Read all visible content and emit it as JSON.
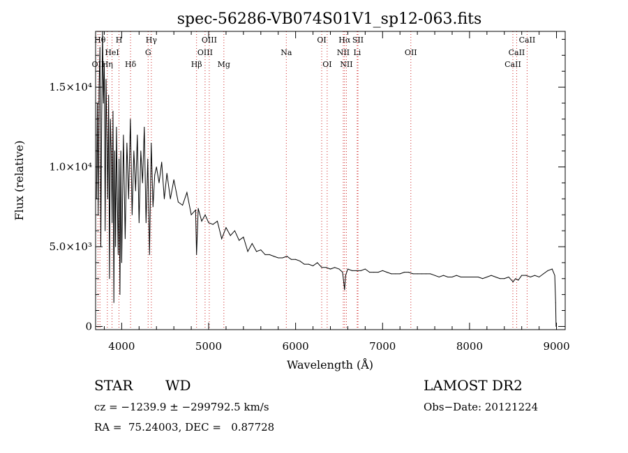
{
  "chart_data": {
    "type": "line",
    "title": "spec-56286-VB074S01V1_sp12-063.fits",
    "xlabel": "Wavelength (Å)",
    "ylabel": "Flux (relative)",
    "xlim": [
      3700,
      9100
    ],
    "ylim": [
      -200,
      18500
    ],
    "x_ticks": [
      {
        "value": 4000,
        "label": "4000"
      },
      {
        "value": 5000,
        "label": "5000"
      },
      {
        "value": 6000,
        "label": "6000"
      },
      {
        "value": 7000,
        "label": "7000"
      },
      {
        "value": 8000,
        "label": "8000"
      },
      {
        "value": 9000,
        "label": "9000"
      }
    ],
    "y_ticks": [
      {
        "value": 0,
        "label": "0"
      },
      {
        "value": 5000,
        "label": "5.0×10³"
      },
      {
        "value": 10000,
        "label": "1.0×10⁴"
      },
      {
        "value": 15000,
        "label": "1.5×10⁴"
      }
    ],
    "series": [
      {
        "color": "#000000",
        "x": [
          3710,
          3720,
          3730,
          3740,
          3750,
          3760,
          3770,
          3780,
          3790,
          3800,
          3810,
          3820,
          3830,
          3840,
          3850,
          3860,
          3870,
          3880,
          3890,
          3900,
          3910,
          3920,
          3930,
          3940,
          3950,
          3960,
          3970,
          3980,
          3990,
          4000,
          4020,
          4040,
          4060,
          4080,
          4100,
          4120,
          4140,
          4160,
          4180,
          4200,
          4220,
          4240,
          4260,
          4280,
          4300,
          4320,
          4340,
          4360,
          4380,
          4400,
          4430,
          4460,
          4490,
          4520,
          4560,
          4600,
          4650,
          4700,
          4750,
          4800,
          4850,
          4861,
          4880,
          4920,
          4960,
          5000,
          5050,
          5100,
          5150,
          5200,
          5250,
          5300,
          5350,
          5400,
          5450,
          5500,
          5550,
          5600,
          5650,
          5700,
          5750,
          5800,
          5850,
          5900,
          5950,
          6000,
          6050,
          6100,
          6150,
          6200,
          6250,
          6300,
          6350,
          6400,
          6450,
          6500,
          6540,
          6555,
          6563,
          6575,
          6600,
          6650,
          6700,
          6750,
          6800,
          6850,
          6900,
          6950,
          7000,
          7050,
          7100,
          7150,
          7200,
          7250,
          7300,
          7350,
          7400,
          7450,
          7500,
          7550,
          7600,
          7650,
          7700,
          7750,
          7800,
          7850,
          7900,
          7950,
          8000,
          8050,
          8100,
          8150,
          8200,
          8250,
          8300,
          8350,
          8400,
          8450,
          8500,
          8530,
          8560,
          8600,
          8650,
          8700,
          8750,
          8800,
          8850,
          8900,
          8950,
          8980,
          8990,
          8995
        ],
        "y": [
          8000,
          14000,
          7000,
          15000,
          17500,
          5000,
          13000,
          18500,
          14000,
          16500,
          6000,
          15500,
          12000,
          8000,
          14500,
          3000,
          13000,
          11000,
          6500,
          13500,
          1500,
          11000,
          5000,
          12500,
          8000,
          4500,
          10500,
          2000,
          11000,
          4000,
          12000,
          5500,
          11500,
          8000,
          13000,
          7000,
          11000,
          8500,
          12000,
          6500,
          11000,
          9000,
          12500,
          6500,
          10500,
          4500,
          11500,
          7500,
          9500,
          10000,
          9000,
          10300,
          8000,
          9600,
          8000,
          9200,
          7800,
          7600,
          8400,
          7000,
          7300,
          4500,
          7400,
          6600,
          7000,
          6500,
          6400,
          6600,
          5500,
          6200,
          5700,
          6000,
          5400,
          5600,
          4700,
          5200,
          4700,
          4800,
          4500,
          4500,
          4400,
          4300,
          4300,
          4400,
          4200,
          4200,
          4100,
          3900,
          3900,
          3800,
          4000,
          3700,
          3700,
          3600,
          3700,
          3600,
          3400,
          2700,
          2300,
          3200,
          3600,
          3500,
          3500,
          3500,
          3600,
          3400,
          3400,
          3400,
          3500,
          3400,
          3300,
          3300,
          3300,
          3400,
          3400,
          3300,
          3300,
          3300,
          3300,
          3300,
          3200,
          3100,
          3200,
          3100,
          3100,
          3200,
          3100,
          3100,
          3100,
          3100,
          3100,
          3000,
          3100,
          3200,
          3100,
          3000,
          3000,
          3100,
          2800,
          3000,
          2900,
          3200,
          3200,
          3100,
          3200,
          3100,
          3300,
          3500,
          3600,
          3200,
          1500,
          0
        ]
      }
    ],
    "spectral_lines": [
      {
        "name": "Hθ",
        "wavelength": 3750,
        "row": 0
      },
      {
        "name": "H",
        "wavelength": 3969,
        "row": 0
      },
      {
        "name": "Hγ",
        "wavelength": 4341,
        "row": 0
      },
      {
        "name": "OIII",
        "wavelength": 5007,
        "row": 0
      },
      {
        "name": "OI",
        "wavelength": 6300,
        "row": 0
      },
      {
        "name": "Hα",
        "wavelength": 6563,
        "row": 0
      },
      {
        "name": "SII",
        "wavelength": 6717,
        "row": 0
      },
      {
        "name": "CaII",
        "wavelength": 8662,
        "row": 0
      },
      {
        "name": "HeI",
        "wavelength": 3889,
        "row": 1
      },
      {
        "name": "G",
        "wavelength": 4304,
        "row": 1
      },
      {
        "name": "OIII",
        "wavelength": 4959,
        "row": 1
      },
      {
        "name": "Na",
        "wavelength": 5893,
        "row": 1
      },
      {
        "name": "NII",
        "wavelength": 6548,
        "row": 1
      },
      {
        "name": "Li",
        "wavelength": 6708,
        "row": 1
      },
      {
        "name": "OII",
        "wavelength": 7325,
        "row": 1
      },
      {
        "name": "CaII",
        "wavelength": 8542,
        "row": 1
      },
      {
        "name": "OII",
        "wavelength": 3727,
        "row": 2
      },
      {
        "name": "Hη",
        "wavelength": 3835,
        "row": 2
      },
      {
        "name": "Hδ",
        "wavelength": 4102,
        "row": 2
      },
      {
        "name": "Hβ",
        "wavelength": 4861,
        "row": 2
      },
      {
        "name": "Mg",
        "wavelength": 5175,
        "row": 2
      },
      {
        "name": "OI",
        "wavelength": 6363,
        "row": 2
      },
      {
        "name": "NII",
        "wavelength": 6584,
        "row": 2
      },
      {
        "name": "CaII",
        "wavelength": 8498,
        "row": 2
      }
    ],
    "line_color": "#cc2020",
    "grid": false
  },
  "footer": {
    "object_type": "STAR",
    "subclass": "WD",
    "survey": "LAMOST DR2",
    "cz": "cz = −1239.9 ± −299792.5 km/s",
    "obs_date": "Obs−Date: 20121224",
    "radec": "RA =  75.24003, DEC =   0.87728"
  }
}
